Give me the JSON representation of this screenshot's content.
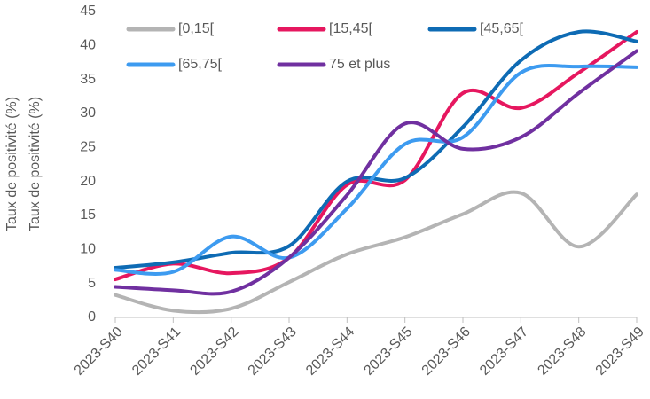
{
  "chart_data": {
    "type": "line",
    "ylabel": "Taux de positivité (%)",
    "categories": [
      "2023-S40",
      "2023-S41",
      "2023-S42",
      "2023-S43",
      "2023-S44",
      "2023-S45",
      "2023-S46",
      "2023-S47",
      "2023-S48",
      "2023-S49"
    ],
    "series": [
      {
        "name": "[0,15[",
        "color": "#b4b4b4",
        "values": [
          3.3,
          1.0,
          1.3,
          5.2,
          9.3,
          11.8,
          15.2,
          18.3,
          10.4,
          18.1
        ]
      },
      {
        "name": "[15,45[",
        "color": "#e6175f",
        "values": [
          5.6,
          7.9,
          6.5,
          8.8,
          19.5,
          20.2,
          33.0,
          30.8,
          36.0,
          42.0
        ]
      },
      {
        "name": "[45,65[",
        "color": "#0e6bb4",
        "values": [
          7.3,
          8.1,
          9.5,
          10.5,
          20.0,
          20.5,
          28.0,
          37.8,
          42.0,
          40.6
        ]
      },
      {
        "name": "[65,75[",
        "color": "#3d9bf0",
        "values": [
          7.0,
          6.7,
          11.9,
          8.8,
          16.0,
          25.5,
          26.5,
          36.0,
          36.9,
          36.8
        ]
      },
      {
        "name": "75 et plus",
        "color": "#7030a0",
        "values": [
          4.5,
          4.0,
          3.8,
          8.8,
          18.0,
          28.5,
          24.8,
          26.5,
          33.0,
          39.2
        ]
      }
    ],
    "ylim": [
      0,
      45
    ],
    "yticks": [
      0,
      5,
      10,
      15,
      20,
      25,
      30,
      35,
      40,
      45
    ],
    "grid": false,
    "legend": "top"
  }
}
